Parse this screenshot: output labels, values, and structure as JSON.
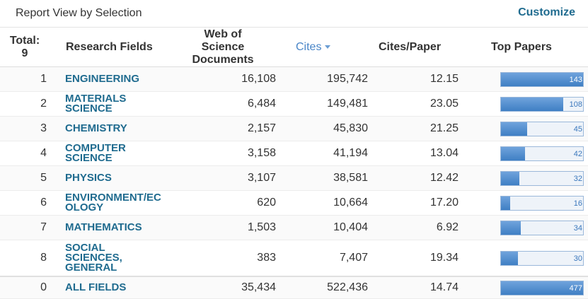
{
  "header": {
    "title": "Report View by Selection",
    "action": "Customize"
  },
  "table": {
    "total_label": "Total:",
    "total_count": "9",
    "columns": [
      "Research Fields",
      "Web of Science Documents",
      "Cites",
      "Cites/Paper",
      "Top Papers"
    ],
    "rows": [
      [
        "1",
        "ENGINEERING",
        "16,108",
        "195,742",
        "12.15",
        143
      ],
      [
        "2",
        "MATERIALS SCIENCE",
        "6,484",
        "149,481",
        "23.05",
        108
      ],
      [
        "3",
        "CHEMISTRY",
        "2,157",
        "45,830",
        "21.25",
        45
      ],
      [
        "4",
        "COMPUTER SCIENCE",
        "3,158",
        "41,194",
        "13.04",
        42
      ],
      [
        "5",
        "PHYSICS",
        "3,107",
        "38,581",
        "12.42",
        32
      ],
      [
        "6",
        "ENVIRONMENT/ECOLOGY",
        "620",
        "10,664",
        "17.20",
        16
      ],
      [
        "7",
        "MATHEMATICS",
        "1,503",
        "10,404",
        "6.92",
        34
      ],
      [
        "8",
        "SOCIAL SCIENCES, GENERAL",
        "383",
        "7,407",
        "19.34",
        30
      ]
    ],
    "totals": [
      "0",
      "ALL FIELDS",
      "35,434",
      "522,436",
      "14.74",
      477
    ]
  }
}
